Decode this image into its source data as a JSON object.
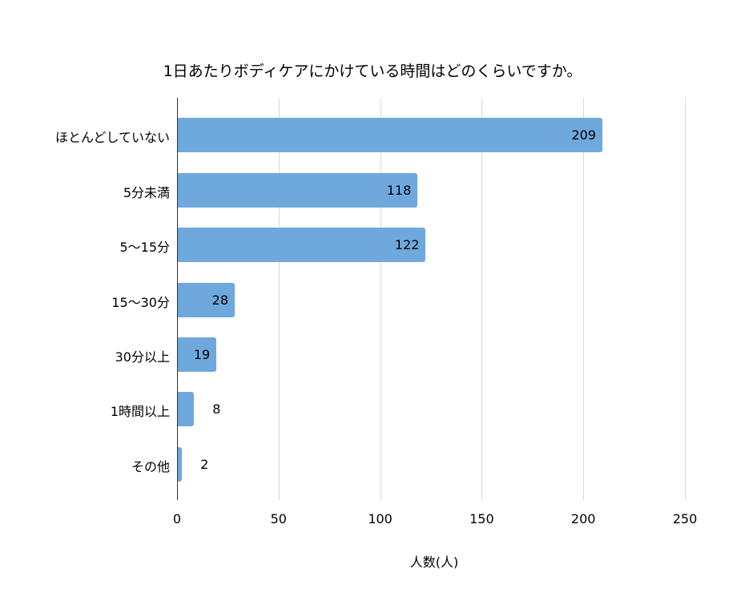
{
  "chart_data": {
    "type": "bar",
    "orientation": "horizontal",
    "title": "1日あたりボディケアにかけている時間はどのくらいですか。",
    "xlabel": "人数(人)",
    "ylabel": "",
    "categories": [
      "ほとんどしていない",
      "5分未満",
      "5〜15分",
      "15〜30分",
      "30分以上",
      "1時間以上",
      "その他"
    ],
    "values": [
      209,
      118,
      122,
      28,
      19,
      8,
      2
    ],
    "xlim": [
      0,
      250
    ],
    "xticks": [
      "0",
      "50",
      "100",
      "150",
      "200",
      "250"
    ],
    "grid": true,
    "legend": null,
    "bar_color": "#6fa8dc",
    "data_labels": true
  }
}
